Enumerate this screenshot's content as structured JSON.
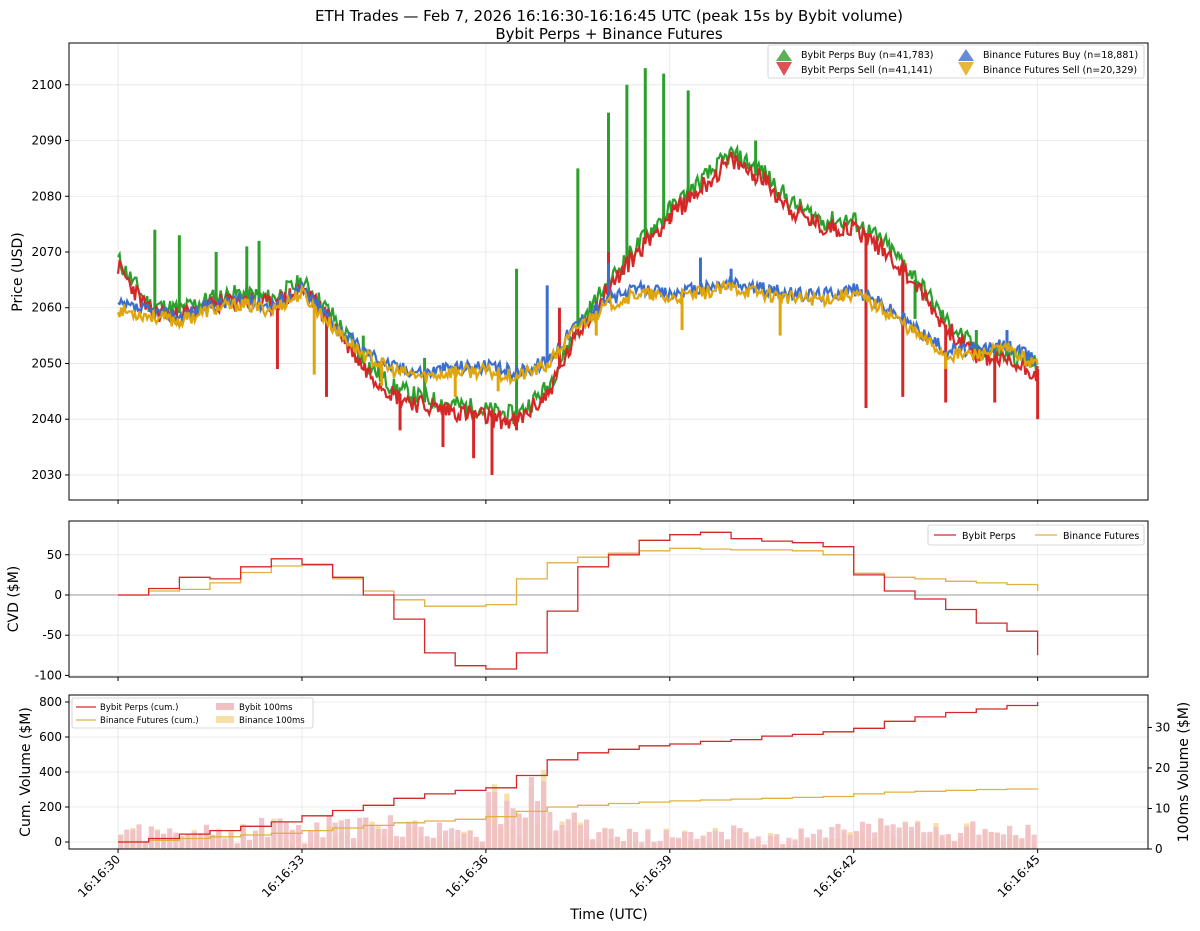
{
  "figure": {
    "title_line1": "ETH Trades — Feb 7, 2026 16:16:30-16:16:45 UTC (peak 15s by Bybit volume)",
    "title_line2": "Bybit Perps + Binance Futures",
    "xlabel": "Time (UTC)",
    "x_ticks": [
      "16:16:30",
      "16:16:33",
      "16:16:36",
      "16:16:39",
      "16:16:42",
      "16:16:45"
    ],
    "x_range_seconds": [
      -0.8,
      16.8
    ]
  },
  "colors": {
    "bybit_buy": "#2ca02c",
    "bybit_sell": "#d62728",
    "binance_buy": "#3a6fd0",
    "binance_sell": "#e0a50a",
    "bybit_line": "#d62728",
    "binance_line": "#e0b040",
    "bybit_bar": "#f0c0c4",
    "binance_bar": "#f5e0a8"
  },
  "chart_data": [
    {
      "id": "price",
      "type": "scatter",
      "ylabel": "Price (USD)",
      "ylim": [
        2025.5,
        2107.5
      ],
      "y_ticks": [
        2030,
        2040,
        2050,
        2060,
        2070,
        2080,
        2090,
        2100
      ],
      "grid": true,
      "legend_position": "top-right",
      "legend": [
        {
          "label": "Bybit Perps Buy (n=41,783)",
          "color_key": "bybit_buy",
          "marker": "triangle-up"
        },
        {
          "label": "Bybit Perps Sell (n=41,141)",
          "color_key": "bybit_sell",
          "marker": "triangle-down"
        },
        {
          "label": "Binance Futures Buy (n=18,881)",
          "color_key": "binance_buy",
          "marker": "triangle-up"
        },
        {
          "label": "Binance Futures Sell (n=20,329)",
          "color_key": "binance_sell",
          "marker": "triangle-down"
        }
      ],
      "x_seconds": [
        0,
        0.5,
        1,
        1.5,
        2,
        2.5,
        3,
        3.5,
        4,
        4.5,
        5,
        5.5,
        6,
        6.5,
        7,
        7.5,
        8,
        8.5,
        9,
        9.5,
        10,
        10.5,
        11,
        11.5,
        12,
        12.5,
        13,
        13.5,
        14,
        14.5,
        15
      ],
      "series": [
        {
          "name": "Bybit Perps",
          "values": [
            2068,
            2060,
            2059,
            2061,
            2062,
            2061,
            2064,
            2058,
            2050,
            2045,
            2043,
            2042,
            2041,
            2040,
            2045,
            2056,
            2064,
            2071,
            2077,
            2082,
            2087,
            2084,
            2078,
            2075,
            2075,
            2071,
            2065,
            2057,
            2052,
            2051,
            2049
          ],
          "spikes_up": [
            [
              0.6,
              2074
            ],
            [
              1.0,
              2073
            ],
            [
              1.6,
              2070
            ],
            [
              2.1,
              2071
            ],
            [
              2.3,
              2072
            ],
            [
              4.0,
              2055
            ],
            [
              5.0,
              2051
            ],
            [
              6.5,
              2067
            ],
            [
              7.5,
              2085
            ],
            [
              8.0,
              2095
            ],
            [
              8.3,
              2100
            ],
            [
              8.6,
              2103
            ],
            [
              8.9,
              2102
            ],
            [
              9.3,
              2099
            ],
            [
              10.4,
              2090
            ],
            [
              13.0,
              2058
            ],
            [
              14.0,
              2056
            ]
          ],
          "spikes_down": [
            [
              2.6,
              2049
            ],
            [
              3.4,
              2044
            ],
            [
              4.6,
              2038
            ],
            [
              5.3,
              2035
            ],
            [
              5.8,
              2033
            ],
            [
              6.1,
              2030
            ],
            [
              6.5,
              2038
            ],
            [
              7.2,
              2060
            ],
            [
              8.0,
              2070
            ],
            [
              9.0,
              2075
            ],
            [
              12.2,
              2042
            ],
            [
              12.8,
              2044
            ],
            [
              13.5,
              2043
            ],
            [
              14.3,
              2043
            ],
            [
              15.0,
              2040
            ]
          ]
        },
        {
          "name": "Binance Futures",
          "values": [
            2060,
            2059,
            2058,
            2060,
            2061,
            2060,
            2063,
            2057,
            2052,
            2049,
            2048,
            2049,
            2049,
            2048,
            2050,
            2057,
            2061,
            2063,
            2062,
            2063,
            2064,
            2063,
            2062,
            2062,
            2063,
            2060,
            2056,
            2052,
            2052,
            2053,
            2050
          ],
          "spikes_up": [
            [
              7.0,
              2064
            ],
            [
              8.0,
              2068
            ],
            [
              9.5,
              2069
            ],
            [
              10.0,
              2067
            ],
            [
              13.0,
              2056
            ],
            [
              14.5,
              2056
            ]
          ],
          "spikes_down": [
            [
              3.2,
              2048
            ],
            [
              4.3,
              2046
            ],
            [
              5.5,
              2044
            ],
            [
              6.2,
              2045
            ],
            [
              7.8,
              2055
            ],
            [
              9.2,
              2056
            ],
            [
              10.8,
              2055
            ],
            [
              13.5,
              2049
            ]
          ]
        }
      ]
    },
    {
      "id": "cvd",
      "type": "line",
      "ylabel": "CVD ($M)",
      "ylim": [
        -102,
        92
      ],
      "y_ticks": [
        -100,
        -50,
        0,
        50
      ],
      "grid": true,
      "legend_position": "top-right",
      "x_seconds": [
        0,
        0.5,
        1,
        1.5,
        2,
        2.5,
        3,
        3.5,
        4,
        4.5,
        5,
        5.5,
        6,
        6.5,
        7,
        7.5,
        8,
        8.5,
        9,
        9.5,
        10,
        10.5,
        11,
        11.5,
        12,
        12.5,
        13,
        13.5,
        14,
        14.5,
        15
      ],
      "series": [
        {
          "name": "Bybit Perps",
          "values": [
            0,
            8,
            22,
            20,
            35,
            45,
            38,
            22,
            0,
            -30,
            -72,
            -88,
            -92,
            -72,
            -20,
            35,
            50,
            68,
            75,
            78,
            70,
            67,
            65,
            60,
            25,
            5,
            -5,
            -18,
            -35,
            -45,
            -75
          ]
        },
        {
          "name": "Binance Futures",
          "values": [
            0,
            5,
            7,
            15,
            28,
            36,
            37,
            20,
            5,
            -6,
            -14,
            -14,
            -12,
            20,
            40,
            47,
            52,
            55,
            58,
            57,
            56,
            56,
            55,
            50,
            27,
            22,
            20,
            17,
            15,
            13,
            5
          ]
        }
      ]
    },
    {
      "id": "volume",
      "type": "bar",
      "ylabel": "Cum. Volume ($M)",
      "ylabel_right": "100ms Volume ($M)",
      "ylim": [
        -40,
        840
      ],
      "y_ticks": [
        0,
        200,
        400,
        600,
        800
      ],
      "ylim_right": [
        0,
        38
      ],
      "y_ticks_right": [
        0,
        10,
        20,
        30
      ],
      "grid": true,
      "legend_position": "top-left",
      "legend": [
        {
          "label": "Bybit Perps (cum.)",
          "type": "line",
          "color_key": "bybit_line"
        },
        {
          "label": "Binance Futures (cum.)",
          "type": "line",
          "color_key": "binance_line"
        },
        {
          "label": "Bybit 100ms",
          "type": "patch",
          "color_key": "bybit_bar"
        },
        {
          "label": "Binance 100ms",
          "type": "patch",
          "color_key": "binance_bar"
        }
      ],
      "x_seconds": [
        0,
        0.5,
        1,
        1.5,
        2,
        2.5,
        3,
        3.5,
        4,
        4.5,
        5,
        5.5,
        6,
        6.5,
        7,
        7.5,
        8,
        8.5,
        9,
        9.5,
        10,
        10.5,
        11,
        11.5,
        12,
        12.5,
        13,
        13.5,
        14,
        14.5,
        15
      ],
      "series": [
        {
          "name": "Bybit Perps (cum.)",
          "values": [
            0,
            20,
            45,
            65,
            90,
            115,
            150,
            180,
            210,
            250,
            275,
            295,
            310,
            380,
            470,
            510,
            530,
            550,
            560,
            575,
            585,
            605,
            615,
            630,
            650,
            690,
            715,
            740,
            760,
            780,
            800
          ]
        },
        {
          "name": "Binance Futures (cum.)",
          "values": [
            0,
            10,
            20,
            30,
            40,
            50,
            65,
            80,
            95,
            110,
            120,
            130,
            145,
            175,
            200,
            210,
            220,
            228,
            235,
            240,
            245,
            250,
            255,
            260,
            275,
            285,
            290,
            295,
            300,
            303,
            305
          ]
        }
      ]
    }
  ]
}
